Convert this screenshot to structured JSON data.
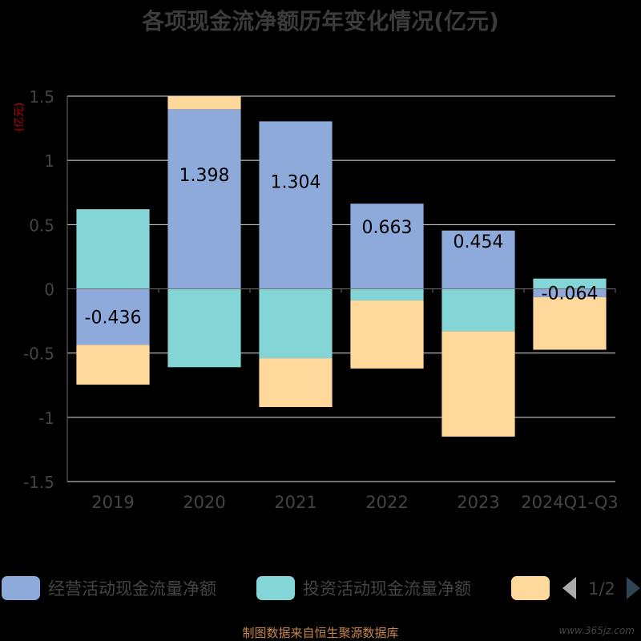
{
  "chart_data": {
    "type": "bar",
    "stacked": true,
    "title": "各项现金流净额历年变化情况(亿元)",
    "ylabel": "(亿元)",
    "categories": [
      "2019",
      "2020",
      "2021",
      "2022",
      "2023",
      "2024Q1-Q3"
    ],
    "ylim": [
      -1.5,
      1.5
    ],
    "yticks": [
      1.5,
      1,
      0.5,
      0,
      -0.5,
      -1,
      -1.5
    ],
    "ytick_labels": [
      "1.5",
      "1",
      "0.5",
      "0",
      "-0.5",
      "-1",
      "-1.5"
    ],
    "grid": true,
    "series": [
      {
        "name": "经营活动现金流量净额",
        "color": "#8eaadb",
        "values": [
          -0.436,
          1.398,
          1.304,
          0.663,
          0.454,
          -0.064
        ],
        "labels": [
          "-0.436",
          "1.398",
          "1.304",
          "0.663",
          "0.454",
          "-0.064"
        ]
      },
      {
        "name": "投资活动现金流量净额",
        "color": "#84d6d6",
        "values": [
          0.62,
          -0.61,
          -0.54,
          -0.09,
          -0.33,
          0.08
        ]
      },
      {
        "color": "#ffd99b",
        "values": [
          -0.31,
          0.1,
          -0.38,
          -0.53,
          -0.82,
          -0.41
        ]
      }
    ],
    "legend": {
      "position": "bottom",
      "page": "1/2"
    }
  },
  "footer": {
    "source": "制图数据来自恒生聚源数据库"
  },
  "watermark": "www.365jz.com"
}
